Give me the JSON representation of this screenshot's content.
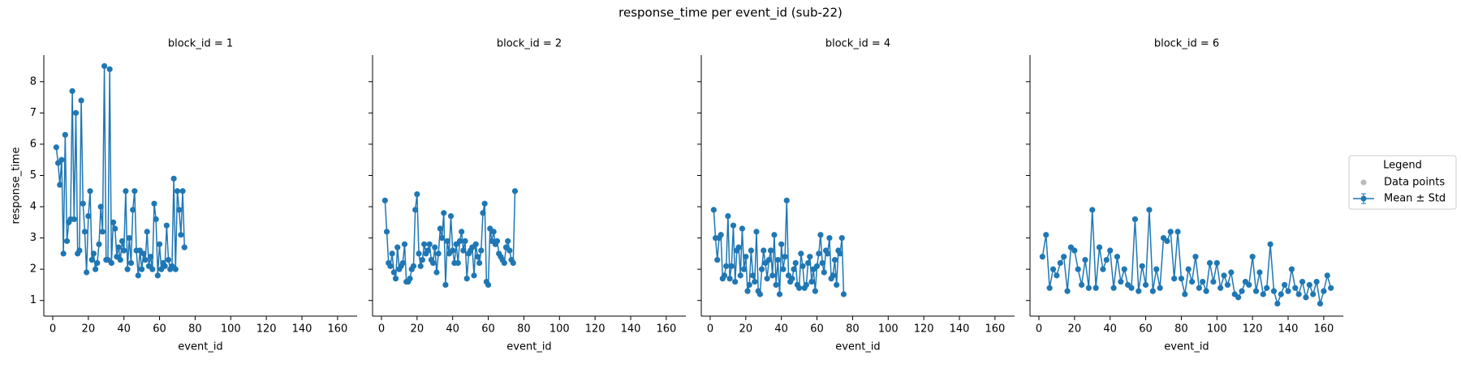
{
  "title": "response_time per event_id (sub-22)",
  "legend": {
    "title": "Legend",
    "entries": [
      {
        "name": "Data points",
        "color": "#bbbbbb"
      },
      {
        "name": "Mean ± Std",
        "color": "#1f77b4"
      }
    ]
  },
  "chart_data": [
    {
      "type": "line",
      "title": "block_id = 1",
      "xlabel": "event_id",
      "ylabel": "response_time",
      "x": [
        2,
        3,
        4,
        5,
        6,
        7,
        8,
        9,
        10,
        11,
        12,
        13,
        14,
        15,
        16,
        17,
        18,
        19,
        20,
        21,
        22,
        23,
        24,
        25,
        26,
        27,
        28,
        29,
        30,
        31,
        32,
        33,
        34,
        35,
        36,
        37,
        38,
        39,
        40,
        41,
        42,
        43,
        44,
        45,
        46,
        47,
        48,
        49,
        50,
        51,
        52,
        53,
        54,
        55,
        56,
        57,
        58,
        59,
        60,
        61,
        62,
        63,
        64,
        65,
        66,
        67,
        68,
        69,
        70,
        71,
        72,
        73,
        74
      ],
      "series": [
        {
          "color": "#1f77b4",
          "values": [
            5.9,
            5.4,
            4.7,
            5.5,
            2.5,
            6.3,
            2.9,
            3.5,
            3.6,
            7.7,
            3.6,
            7.0,
            2.5,
            2.6,
            7.4,
            4.1,
            3.2,
            1.9,
            3.7,
            4.5,
            2.3,
            2.5,
            2.0,
            2.2,
            2.8,
            4.0,
            3.2,
            8.5,
            2.3,
            2.3,
            8.4,
            2.2,
            3.5,
            3.3,
            2.4,
            2.7,
            2.3,
            2.9,
            2.6,
            4.5,
            2.0,
            3.0,
            2.2,
            3.9,
            4.5,
            2.6,
            1.8,
            2.6,
            2.0,
            2.5,
            2.3,
            3.2,
            2.1,
            2.4,
            2.0,
            4.1,
            3.6,
            1.8,
            2.8,
            2.0,
            2.2,
            2.1,
            3.4,
            2.3,
            2.0,
            2.1,
            4.9,
            2.0,
            4.5,
            3.9,
            3.1,
            4.5,
            2.7
          ]
        }
      ],
      "xlim": [
        -5,
        171
      ],
      "ylim": [
        0.5,
        8.85
      ],
      "xticks": [
        0,
        20,
        40,
        60,
        80,
        100,
        120,
        140,
        160
      ],
      "yticks": [
        1,
        2,
        3,
        4,
        5,
        6,
        7,
        8
      ]
    },
    {
      "type": "line",
      "title": "block_id = 2",
      "xlabel": "event_id",
      "x": [
        2,
        3,
        4,
        5,
        6,
        7,
        8,
        9,
        10,
        11,
        12,
        13,
        14,
        15,
        16,
        17,
        18,
        19,
        20,
        21,
        22,
        23,
        24,
        25,
        26,
        27,
        28,
        29,
        30,
        31,
        32,
        33,
        34,
        35,
        36,
        37,
        38,
        39,
        40,
        41,
        42,
        43,
        44,
        45,
        46,
        47,
        48,
        49,
        50,
        51,
        52,
        53,
        54,
        55,
        56,
        57,
        58,
        59,
        60,
        61,
        62,
        63,
        64,
        65,
        66,
        67,
        68,
        69,
        70,
        71,
        72,
        73,
        74,
        75
      ],
      "series": [
        {
          "color": "#1f77b4",
          "values": [
            4.2,
            3.2,
            2.2,
            2.1,
            2.5,
            1.9,
            1.7,
            2.7,
            2.0,
            2.1,
            2.2,
            2.8,
            1.6,
            1.6,
            1.7,
            2.0,
            2.1,
            3.9,
            4.4,
            2.5,
            2.1,
            2.3,
            2.8,
            2.5,
            2.6,
            2.8,
            2.3,
            2.2,
            2.7,
            1.9,
            2.5,
            3.3,
            3.0,
            3.8,
            1.5,
            2.9,
            2.5,
            3.7,
            2.6,
            2.2,
            2.8,
            2.2,
            2.9,
            3.2,
            2.6,
            2.9,
            1.7,
            2.5,
            2.6,
            2.7,
            1.8,
            2.8,
            2.4,
            2.2,
            2.6,
            3.8,
            4.1,
            1.6,
            1.5,
            3.3,
            2.9,
            3.2,
            2.8,
            2.9,
            2.5,
            2.4,
            2.3,
            2.2,
            2.7,
            2.9,
            2.6,
            2.3,
            2.2,
            4.5
          ]
        }
      ],
      "xlim": [
        -5,
        171
      ],
      "ylim": [
        0.5,
        8.85
      ],
      "xticks": [
        0,
        20,
        40,
        60,
        80,
        100,
        120,
        140,
        160
      ],
      "yticks": [
        1,
        2,
        3,
        4,
        5,
        6,
        7,
        8
      ]
    },
    {
      "type": "line",
      "title": "block_id = 4",
      "xlabel": "event_id",
      "x": [
        2,
        3,
        4,
        5,
        6,
        7,
        8,
        9,
        10,
        11,
        12,
        13,
        14,
        15,
        16,
        17,
        18,
        19,
        20,
        21,
        22,
        23,
        24,
        25,
        26,
        27,
        28,
        29,
        30,
        31,
        32,
        33,
        34,
        35,
        36,
        37,
        38,
        39,
        40,
        41,
        42,
        43,
        44,
        45,
        46,
        47,
        48,
        49,
        50,
        51,
        52,
        53,
        54,
        55,
        56,
        57,
        58,
        59,
        60,
        61,
        62,
        63,
        64,
        65,
        66,
        67,
        68,
        69,
        70,
        71,
        72,
        73,
        74,
        75
      ],
      "series": [
        {
          "color": "#1f77b4",
          "values": [
            3.9,
            3.0,
            2.3,
            3.0,
            3.1,
            1.7,
            1.8,
            2.1,
            3.7,
            1.7,
            2.1,
            3.4,
            1.6,
            2.6,
            2.7,
            1.8,
            3.3,
            2.0,
            2.4,
            1.3,
            1.5,
            2.6,
            1.8,
            1.6,
            3.2,
            1.3,
            1.2,
            2.0,
            2.6,
            2.2,
            1.7,
            2.3,
            2.6,
            1.8,
            3.1,
            1.5,
            2.3,
            1.2,
            2.8,
            2.0,
            2.4,
            4.2,
            1.8,
            1.6,
            1.7,
            2.0,
            2.2,
            1.5,
            1.4,
            2.5,
            2.1,
            1.4,
            1.5,
            2.2,
            2.4,
            1.6,
            2.0,
            1.3,
            2.1,
            2.5,
            3.1,
            2.2,
            1.9,
            2.6,
            2.5,
            3.0,
            1.7,
            1.8,
            2.3,
            1.5,
            2.6,
            2.5,
            3.0,
            1.2
          ]
        }
      ],
      "xlim": [
        -5,
        171
      ],
      "ylim": [
        0.5,
        8.85
      ],
      "xticks": [
        0,
        20,
        40,
        60,
        80,
        100,
        120,
        140,
        160
      ],
      "yticks": [
        1,
        2,
        3,
        4,
        5,
        6,
        7,
        8
      ]
    },
    {
      "type": "line",
      "title": "block_id = 6",
      "xlabel": "event_id",
      "x": [
        2,
        4,
        6,
        8,
        10,
        12,
        14,
        16,
        18,
        20,
        22,
        24,
        26,
        28,
        30,
        32,
        34,
        36,
        38,
        40,
        42,
        44,
        46,
        48,
        50,
        52,
        54,
        56,
        58,
        60,
        62,
        64,
        66,
        68,
        70,
        72,
        74,
        76,
        78,
        80,
        82,
        84,
        86,
        88,
        90,
        92,
        94,
        96,
        98,
        100,
        102,
        104,
        106,
        108,
        110,
        112,
        114,
        116,
        118,
        120,
        122,
        124,
        126,
        128,
        130,
        132,
        134,
        136,
        138,
        140,
        142,
        144,
        146,
        148,
        150,
        152,
        154,
        156,
        158,
        160,
        162,
        164
      ],
      "series": [
        {
          "color": "#1f77b4",
          "values": [
            2.4,
            3.1,
            1.4,
            2.0,
            1.8,
            2.2,
            2.4,
            1.3,
            2.7,
            2.6,
            2.0,
            1.5,
            2.3,
            1.4,
            3.9,
            1.4,
            2.7,
            2.0,
            2.3,
            2.6,
            1.4,
            2.4,
            1.6,
            2.0,
            1.5,
            1.4,
            3.6,
            1.3,
            2.1,
            1.5,
            3.9,
            1.3,
            2.0,
            1.4,
            3.0,
            2.9,
            3.2,
            1.7,
            3.2,
            1.7,
            1.2,
            2.0,
            1.6,
            2.4,
            1.4,
            1.6,
            1.3,
            2.2,
            1.6,
            2.2,
            1.4,
            1.8,
            1.5,
            1.9,
            1.2,
            1.1,
            1.3,
            1.6,
            1.5,
            2.4,
            1.3,
            1.9,
            1.2,
            1.4,
            2.8,
            1.3,
            0.9,
            1.2,
            1.5,
            1.3,
            2.0,
            1.4,
            1.2,
            1.6,
            1.1,
            1.5,
            1.2,
            1.6,
            0.9,
            1.3,
            1.8,
            1.4
          ]
        }
      ],
      "xlim": [
        -5,
        171
      ],
      "ylim": [
        0.5,
        8.85
      ],
      "xticks": [
        0,
        20,
        40,
        60,
        80,
        100,
        120,
        140,
        160
      ],
      "yticks": [
        1,
        2,
        3,
        4,
        5,
        6,
        7,
        8
      ]
    }
  ]
}
